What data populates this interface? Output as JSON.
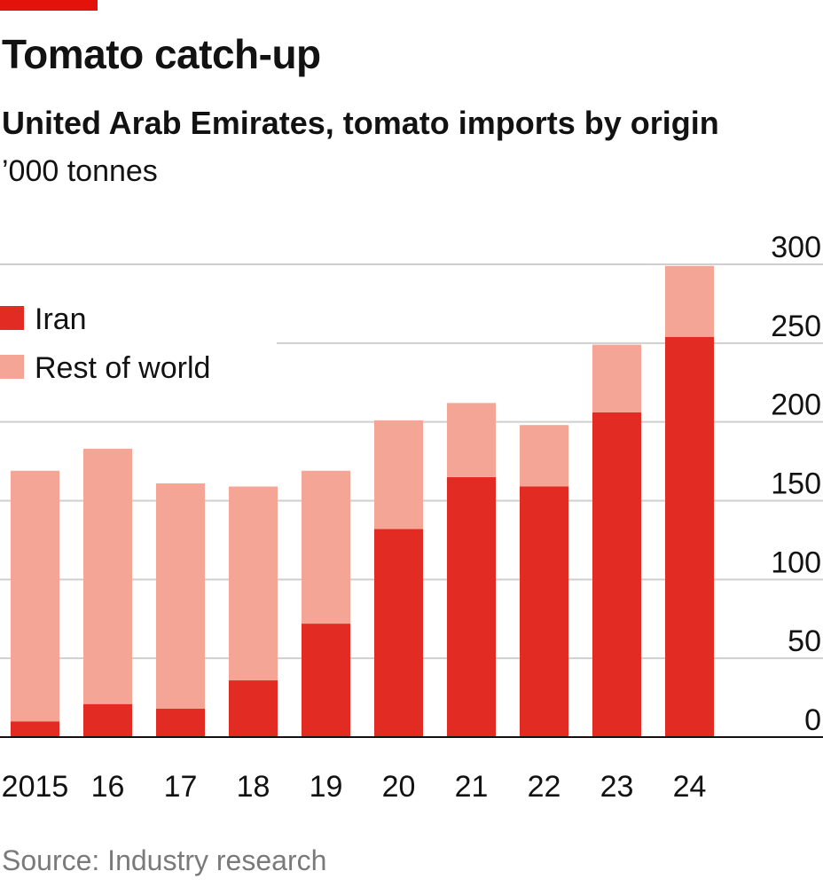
{
  "header": {
    "title": "Tomato catch-up",
    "subtitle": "United Arab Emirates, tomato imports by origin",
    "unit": "’000 tonnes"
  },
  "footer": {
    "source": "Source: Industry research"
  },
  "colors": {
    "accent": "#e3120b",
    "iran": "#e12b23",
    "rest": "#f4a596",
    "grid": "#cfcfcf",
    "axis": "#121212"
  },
  "chart_data": {
    "type": "bar",
    "stacked": true,
    "title": "Tomato catch-up",
    "subtitle": "United Arab Emirates, tomato imports by origin",
    "ylabel": "’000 tonnes",
    "categories": [
      "2015",
      "16",
      "17",
      "18",
      "19",
      "20",
      "21",
      "22",
      "23",
      "24"
    ],
    "series": [
      {
        "name": "Iran",
        "color": "#e12b23",
        "values": [
          10,
          21,
          18,
          36,
          72,
          132,
          165,
          159,
          206,
          254
        ]
      },
      {
        "name": "Rest of world",
        "color": "#f4a596",
        "values": [
          159,
          162,
          143,
          123,
          97,
          69,
          47,
          39,
          43,
          45
        ]
      }
    ],
    "ylim": [
      0,
      300
    ],
    "yticks": [
      0,
      50,
      100,
      150,
      200,
      250,
      300
    ],
    "grid": true,
    "y_axis_side": "right",
    "legend": "top-left"
  }
}
